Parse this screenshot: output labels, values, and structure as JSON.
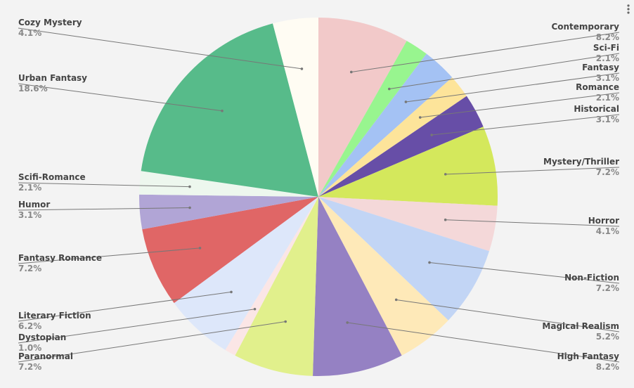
{
  "chart_data": {
    "type": "pie",
    "categories": [
      "Contemporary",
      "Sci-Fi",
      "Fantasy",
      "Romance",
      "Historical",
      "Mystery/Thriller",
      "Horror",
      "Non-Fiction",
      "Magical Realism",
      "High Fantasy",
      "Paranormal",
      "Dystopian",
      "Literary Fiction",
      "Fantasy Romance",
      "Humor",
      "Scifi-Romance",
      "Urban Fantasy",
      "Cozy Mystery"
    ],
    "values": [
      8.2,
      2.1,
      3.1,
      2.1,
      3.1,
      7.2,
      4.1,
      7.2,
      5.2,
      8.2,
      7.2,
      1.0,
      6.2,
      7.2,
      3.1,
      2.1,
      18.6,
      4.1
    ],
    "value_labels": [
      "8.2%",
      "2.1%",
      "3.1%",
      "2.1%",
      "3.1%",
      "7.2%",
      "4.1%",
      "7.2%",
      "5.2%",
      "8.2%",
      "7.2%",
      "1.0%",
      "6.2%",
      "7.2%",
      "3.1%",
      "2.1%",
      "18.6%",
      "4.1%"
    ],
    "colors": [
      "#f2c9c9",
      "#98f58f",
      "#a4c2f4",
      "#fde49a",
      "#674ea7",
      "#d4e85c",
      "#f4d8d9",
      "#c2d5f5",
      "#fee9b8",
      "#9581c3",
      "#e1f08c",
      "#fbe6e6",
      "#dde7fa",
      "#e06666",
      "#b1a5d6",
      "#edf7ee",
      "#57bb8a",
      "#fffcf3"
    ]
  }
}
